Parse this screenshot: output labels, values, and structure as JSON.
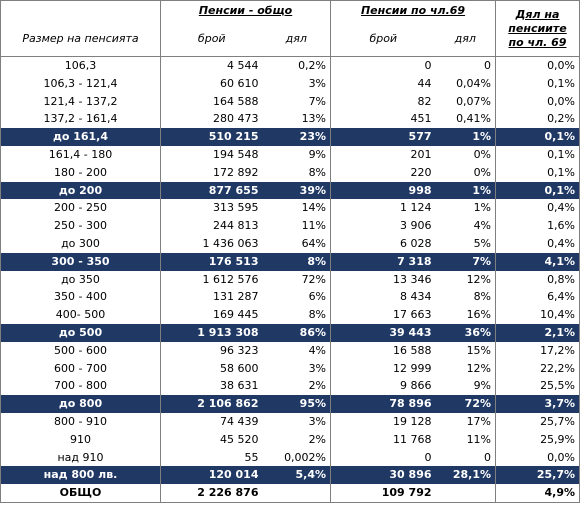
{
  "table": {
    "header": {
      "group_total": "Пенсии - общо",
      "group_art69": "Пенсии по чл.69",
      "share": "Дял на пенсиите по чл. 69",
      "columns": [
        "Размер на пенсията",
        "брой",
        "дял",
        "брой",
        "дял"
      ]
    },
    "rows": [
      {
        "cells": [
          "106,3",
          "4 544",
          "0,2%",
          "0",
          "0",
          "0,0%"
        ]
      },
      {
        "cells": [
          "106,3 - 121,4",
          "60 610",
          "3%",
          "44",
          "0,04%",
          "0,1%"
        ]
      },
      {
        "cells": [
          "121,4 - 137,2",
          "164 588",
          "7%",
          "82",
          "0,07%",
          "0,0%"
        ]
      },
      {
        "cells": [
          "137,2 - 161,4",
          "280 473",
          "13%",
          "451",
          "0,41%",
          "0,2%"
        ]
      },
      {
        "cells": [
          "до 161,4",
          "510 215",
          "23%",
          "577",
          "1%",
          "0,1%"
        ],
        "highlight": true
      },
      {
        "cells": [
          "161,4 - 180",
          "194 548",
          "9%",
          "201",
          "0%",
          "0,1%"
        ]
      },
      {
        "cells": [
          "180 - 200",
          "172 892",
          "8%",
          "220",
          "0%",
          "0,1%"
        ]
      },
      {
        "cells": [
          "до 200",
          "877 655",
          "39%",
          "998",
          "1%",
          "0,1%"
        ],
        "highlight": true
      },
      {
        "cells": [
          "200 - 250",
          "313 595",
          "14%",
          "1 124",
          "1%",
          "0,4%"
        ]
      },
      {
        "cells": [
          "250 - 300",
          "244 813",
          "11%",
          "3 906",
          "4%",
          "1,6%"
        ]
      },
      {
        "cells": [
          "до 300",
          "1 436 063",
          "64%",
          "6 028",
          "5%",
          "0,4%"
        ]
      },
      {
        "cells": [
          "300 - 350",
          "176 513",
          "8%",
          "7 318",
          "7%",
          "4,1%"
        ],
        "highlight": true
      },
      {
        "cells": [
          "до 350",
          "1 612 576",
          "72%",
          "13 346",
          "12%",
          "0,8%"
        ]
      },
      {
        "cells": [
          "350 - 400",
          "131 287",
          "6%",
          "8 434",
          "8%",
          "6,4%"
        ]
      },
      {
        "cells": [
          "400- 500",
          "169 445",
          "8%",
          "17 663",
          "16%",
          "10,4%"
        ]
      },
      {
        "cells": [
          "до 500",
          "1 913 308",
          "86%",
          "39 443",
          "36%",
          "2,1%"
        ],
        "highlight": true
      },
      {
        "cells": [
          "500 - 600",
          "96 323",
          "4%",
          "16 588",
          "15%",
          "17,2%"
        ]
      },
      {
        "cells": [
          "600 - 700",
          "58 600",
          "3%",
          "12 999",
          "12%",
          "22,2%"
        ]
      },
      {
        "cells": [
          "700 - 800",
          "38 631",
          "2%",
          "9 866",
          "9%",
          "25,5%"
        ]
      },
      {
        "cells": [
          "до 800",
          "2 106 862",
          "95%",
          "78 896",
          "72%",
          "3,7%"
        ],
        "highlight": true
      },
      {
        "cells": [
          "800 - 910",
          "74 439",
          "3%",
          "19 128",
          "17%",
          "25,7%"
        ]
      },
      {
        "cells": [
          "910",
          "45 520",
          "2%",
          "11 768",
          "11%",
          "25,9%"
        ]
      },
      {
        "cells": [
          "над  910",
          "55",
          "0,002%",
          "0",
          "0",
          "0,0%"
        ]
      },
      {
        "cells": [
          "над 800 лв.",
          "120 014",
          "5,4%",
          "30 896",
          "28,1%",
          "25,7%"
        ],
        "highlight": true
      },
      {
        "cells": [
          "ОБЩО",
          "2 226 876",
          null,
          "109 792",
          null,
          "4,9%"
        ],
        "total": true
      }
    ]
  }
}
